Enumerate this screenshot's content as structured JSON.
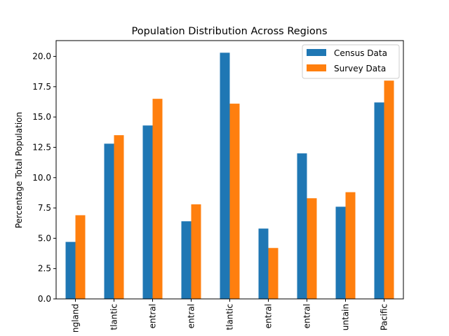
{
  "chart_data": {
    "type": "bar",
    "title": "Population Distribution Across Regions",
    "xlabel": "",
    "ylabel": "Percentage Total Population",
    "categories": [
      "ngland",
      "tlantic",
      "entral",
      "entral",
      "tlantic",
      "entral",
      "entral",
      "untain",
      "Pacific"
    ],
    "series": [
      {
        "name": "Census Data",
        "color": "#1f77b4",
        "values": [
          4.7,
          12.8,
          14.3,
          6.4,
          20.3,
          5.8,
          12.0,
          7.6,
          16.2
        ]
      },
      {
        "name": "Survey Data",
        "color": "#ff7f0e",
        "values": [
          6.9,
          13.5,
          16.5,
          7.8,
          16.1,
          4.2,
          8.3,
          8.8,
          18.0
        ]
      }
    ],
    "ylim": [
      0,
      21.3
    ],
    "yticks": [
      "0.0",
      "2.5",
      "5.0",
      "7.5",
      "10.0",
      "12.5",
      "15.0",
      "17.5",
      "20.0"
    ],
    "grid": false,
    "legend_position": "top-right"
  }
}
